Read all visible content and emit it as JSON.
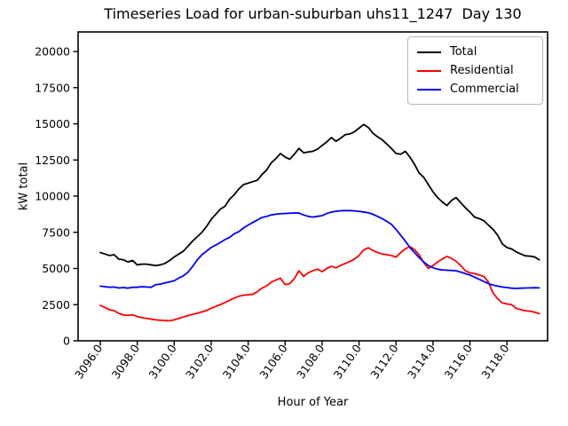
{
  "chart_data": {
    "type": "line",
    "title": "Timeseries Load for urban-suburban uhs11_1247  Day 130",
    "xlabel": "Hour of Year",
    "ylabel": "kW total",
    "xlim": [
      3094.8,
      3120.2
    ],
    "ylim": [
      0,
      21350
    ],
    "grid": false,
    "legend_position": "upper right",
    "x_start": 3096.0,
    "x_step": 0.25,
    "x_tick_values": [
      3096,
      3098,
      3100,
      3102,
      3104,
      3106,
      3108,
      3110,
      3112,
      3114,
      3116,
      3118
    ],
    "x_tick_labels": [
      "3096.0",
      "3098.0",
      "3100.0",
      "3102.0",
      "3104.0",
      "3106.0",
      "3108.0",
      "3110.0",
      "3112.0",
      "3114.0",
      "3116.0",
      "3118.0"
    ],
    "y_tick_values": [
      0,
      2500,
      5000,
      7500,
      10000,
      12500,
      15000,
      17500,
      20000
    ],
    "y_tick_labels": [
      "0",
      "2500",
      "5000",
      "7500",
      "10000",
      "12500",
      "15000",
      "17500",
      "20000"
    ],
    "axis_color": "#000000",
    "series": [
      {
        "name": "Total",
        "color": "#000000",
        "values": [
          6100,
          6000,
          5900,
          5950,
          5650,
          5600,
          5450,
          5550,
          5250,
          5300,
          5300,
          5250,
          5200,
          5250,
          5350,
          5550,
          5800,
          6000,
          6200,
          6550,
          6900,
          7200,
          7500,
          7900,
          8400,
          8750,
          9100,
          9300,
          9800,
          10100,
          10500,
          10800,
          10900,
          11000,
          11100,
          11500,
          11800,
          12300,
          12600,
          12950,
          12700,
          12550,
          12900,
          13300,
          13000,
          13050,
          13100,
          13250,
          13500,
          13750,
          14050,
          13800,
          14000,
          14250,
          14300,
          14450,
          14700,
          14950,
          14750,
          14350,
          14100,
          13900,
          13600,
          13300,
          12950,
          12900,
          13100,
          12700,
          12200,
          11600,
          11300,
          10800,
          10300,
          9900,
          9600,
          9350,
          9700,
          9900,
          9550,
          9200,
          8900,
          8550,
          8450,
          8300,
          8000,
          7700,
          7300,
          6700,
          6450,
          6350,
          6150,
          6000,
          5870,
          5850,
          5800,
          5600
        ]
      },
      {
        "name": "Residential",
        "color": "#ff0000",
        "values": [
          2450,
          2300,
          2150,
          2080,
          1900,
          1780,
          1760,
          1800,
          1680,
          1600,
          1550,
          1500,
          1450,
          1420,
          1400,
          1380,
          1450,
          1550,
          1650,
          1750,
          1830,
          1900,
          2000,
          2100,
          2250,
          2380,
          2500,
          2650,
          2800,
          2950,
          3080,
          3150,
          3180,
          3210,
          3400,
          3650,
          3800,
          4050,
          4200,
          4330,
          3880,
          3950,
          4300,
          4840,
          4450,
          4700,
          4850,
          4950,
          4780,
          5000,
          5150,
          5050,
          5200,
          5350,
          5480,
          5650,
          5900,
          6280,
          6430,
          6250,
          6100,
          6000,
          5950,
          5900,
          5780,
          6100,
          6350,
          6520,
          6300,
          5950,
          5400,
          5000,
          5200,
          5450,
          5650,
          5830,
          5700,
          5500,
          5200,
          4850,
          4700,
          4650,
          4550,
          4450,
          4050,
          3300,
          2900,
          2620,
          2550,
          2500,
          2250,
          2150,
          2080,
          2050,
          1980,
          1880
        ]
      },
      {
        "name": "Commercial",
        "color": "#0000ff",
        "values": [
          3780,
          3740,
          3700,
          3720,
          3650,
          3680,
          3640,
          3700,
          3700,
          3740,
          3720,
          3700,
          3880,
          3920,
          4000,
          4070,
          4150,
          4340,
          4500,
          4750,
          5150,
          5600,
          5950,
          6200,
          6450,
          6620,
          6800,
          7000,
          7150,
          7400,
          7550,
          7800,
          8000,
          8180,
          8350,
          8530,
          8600,
          8700,
          8750,
          8790,
          8800,
          8820,
          8830,
          8830,
          8700,
          8600,
          8550,
          8600,
          8650,
          8800,
          8900,
          8950,
          8990,
          9000,
          9000,
          8980,
          8950,
          8900,
          8850,
          8750,
          8600,
          8450,
          8250,
          8050,
          7700,
          7300,
          6900,
          6450,
          6100,
          5750,
          5450,
          5200,
          5050,
          4950,
          4900,
          4880,
          4860,
          4840,
          4750,
          4650,
          4550,
          4400,
          4250,
          4100,
          3950,
          3850,
          3780,
          3720,
          3680,
          3640,
          3620,
          3640,
          3650,
          3660,
          3670,
          3660
        ]
      }
    ]
  }
}
